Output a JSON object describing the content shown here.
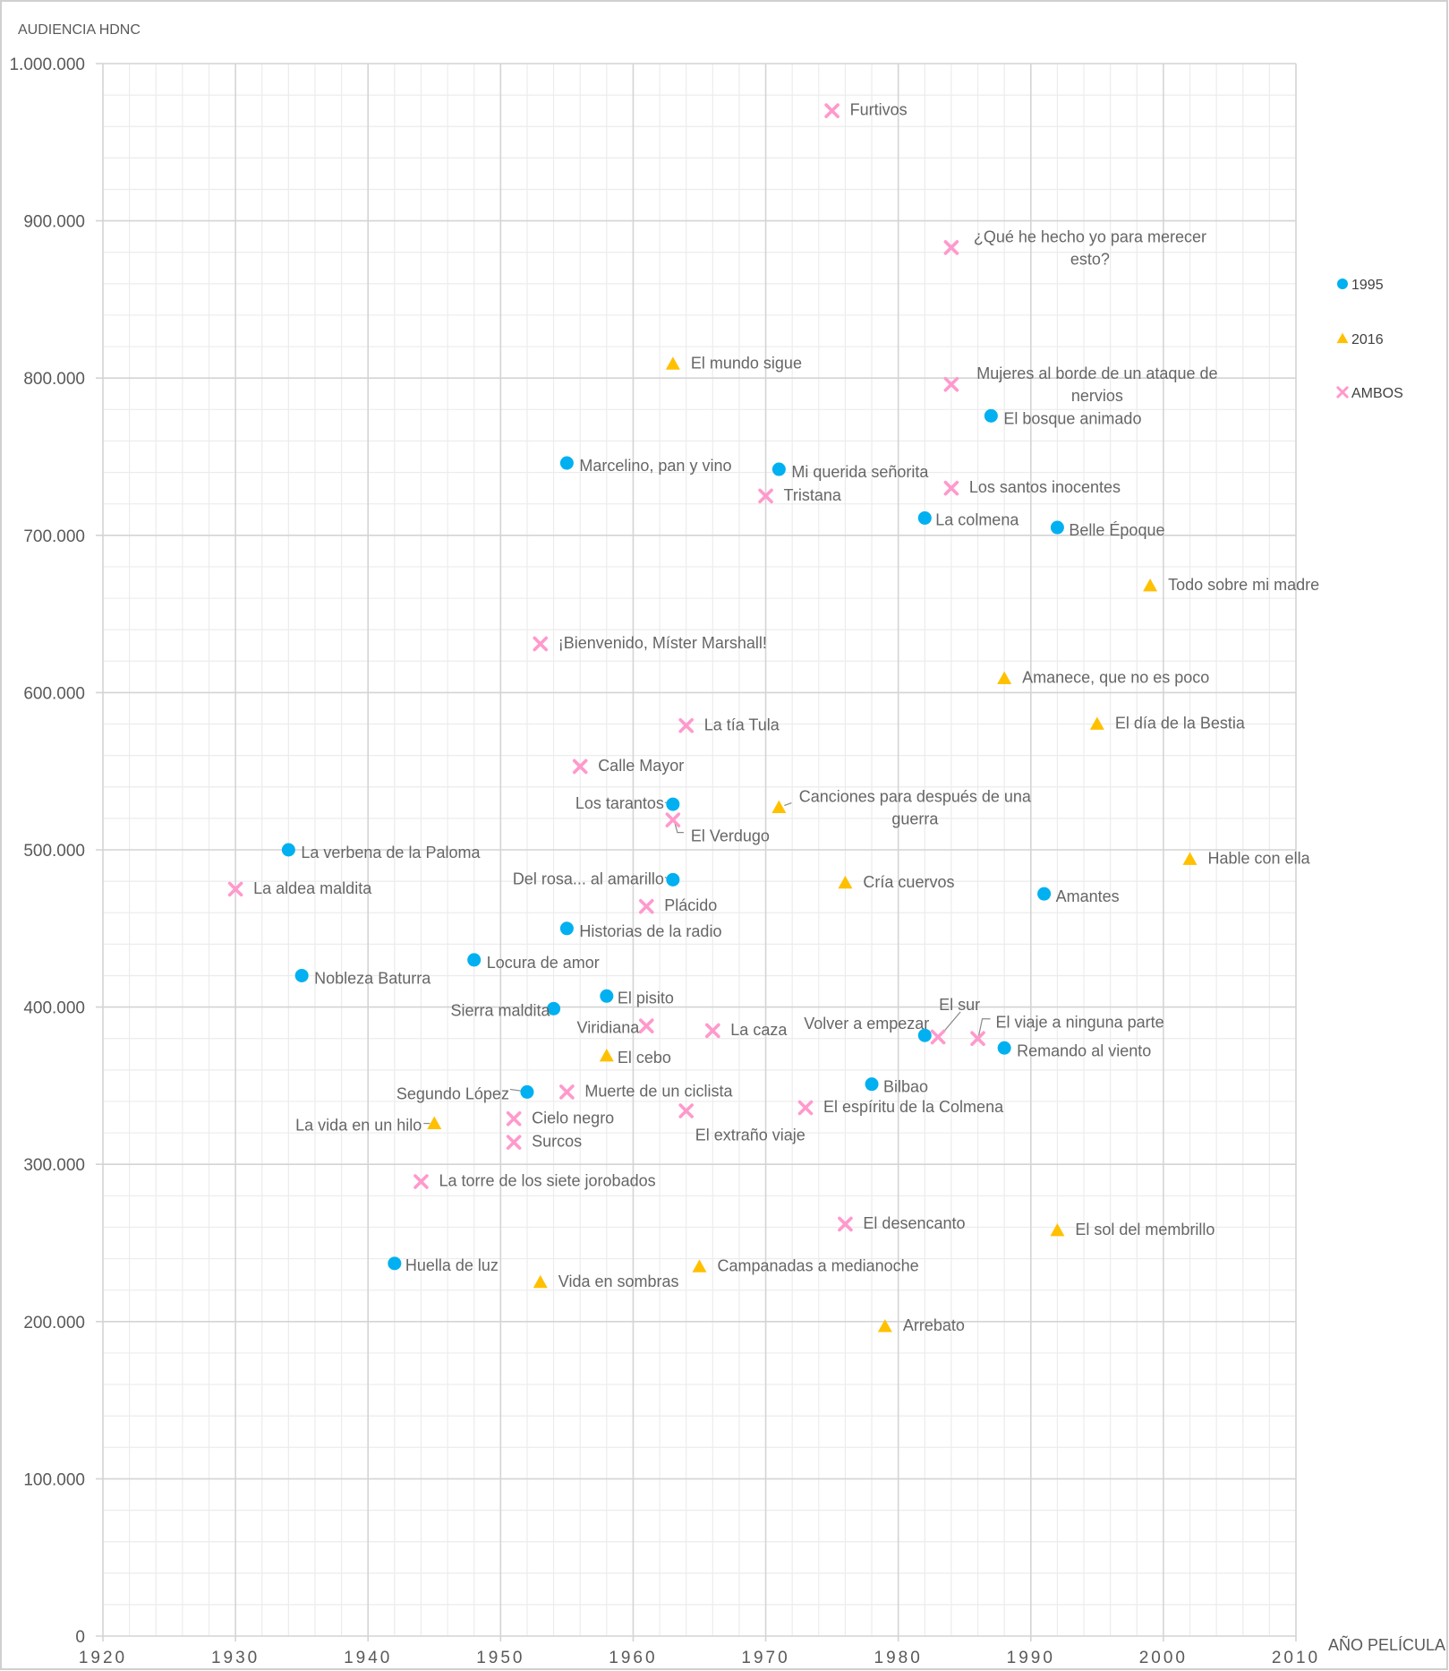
{
  "chart_data": {
    "type": "scatter",
    "title": "",
    "xlabel": "AÑO PELÍCULA",
    "ylabel": "AUDIENCIA HDNC",
    "xlim": [
      1920,
      2010
    ],
    "ylim": [
      0,
      1000000
    ],
    "x_ticks": [
      1920,
      1930,
      1940,
      1950,
      1960,
      1970,
      1980,
      1990,
      2000,
      2010
    ],
    "x_tick_labels": [
      "1920",
      "1930",
      "1940",
      "1950",
      "1960",
      "1970",
      "1980",
      "1990",
      "2000",
      "2010"
    ],
    "y_ticks": [
      0,
      100000,
      200000,
      300000,
      400000,
      500000,
      600000,
      700000,
      800000,
      900000,
      1000000
    ],
    "y_tick_labels": [
      "0",
      "100.000",
      "200.000",
      "300.000",
      "400.000",
      "500.000",
      "600.000",
      "700.000",
      "800.000",
      "900.000",
      "1.000.000"
    ],
    "grid": true,
    "legend_position": "right",
    "series": [
      {
        "name": "1995",
        "marker": "circle",
        "color": "#00B0F0"
      },
      {
        "name": "2016",
        "marker": "triangle",
        "color": "#FFC000"
      },
      {
        "name": "AMBOS",
        "marker": "x",
        "color": "#FF99CC"
      }
    ],
    "points": [
      {
        "label": "Furtivos",
        "series": "AMBOS",
        "x": 1975,
        "y": 970000
      },
      {
        "label": "¿Qué he hecho yo para merecer esto?",
        "series": "AMBOS",
        "x": 1984,
        "y": 883000
      },
      {
        "label": "El mundo sigue",
        "series": "2016",
        "x": 1963,
        "y": 809000
      },
      {
        "label": "Mujeres al borde de un ataque de nervios",
        "series": "AMBOS",
        "x": 1984,
        "y": 796000
      },
      {
        "label": "El bosque animado",
        "series": "1995",
        "x": 1987,
        "y": 776000
      },
      {
        "label": "Marcelino, pan y vino",
        "series": "1995",
        "x": 1955,
        "y": 746000
      },
      {
        "label": "Mi querida señorita",
        "series": "1995",
        "x": 1971,
        "y": 742000
      },
      {
        "label": "Tristana",
        "series": "AMBOS",
        "x": 1970,
        "y": 725000
      },
      {
        "label": "Los santos inocentes",
        "series": "AMBOS",
        "x": 1984,
        "y": 730000
      },
      {
        "label": "La colmena",
        "series": "1995",
        "x": 1982,
        "y": 711000
      },
      {
        "label": "Belle Époque",
        "series": "1995",
        "x": 1992,
        "y": 705000
      },
      {
        "label": "Todo sobre mi madre",
        "series": "2016",
        "x": 1999,
        "y": 668000
      },
      {
        "label": "¡Bienvenido, Míster Marshall!",
        "series": "AMBOS",
        "x": 1953,
        "y": 631000
      },
      {
        "label": "Amanece, que no es poco",
        "series": "2016",
        "x": 1988,
        "y": 609000
      },
      {
        "label": "La tía Tula",
        "series": "AMBOS",
        "x": 1964,
        "y": 579000
      },
      {
        "label": "El día de la Bestia",
        "series": "2016",
        "x": 1995,
        "y": 580000
      },
      {
        "label": "Calle Mayor",
        "series": "AMBOS",
        "x": 1956,
        "y": 553000
      },
      {
        "label": "Los tarantos",
        "series": "1995",
        "x": 1963,
        "y": 529000
      },
      {
        "label": "Canciones para después de una guerra",
        "series": "2016",
        "x": 1971,
        "y": 527000
      },
      {
        "label": "El Verdugo",
        "series": "AMBOS",
        "x": 1963,
        "y": 519000
      },
      {
        "label": "La verbena de la Paloma",
        "series": "1995",
        "x": 1934,
        "y": 500000
      },
      {
        "label": "Hable con ella",
        "series": "2016",
        "x": 2002,
        "y": 494000
      },
      {
        "label": "La aldea maldita",
        "series": "AMBOS",
        "x": 1930,
        "y": 475000
      },
      {
        "label": "Del rosa... al amarillo",
        "series": "1995",
        "x": 1963,
        "y": 481000
      },
      {
        "label": "Cría cuervos",
        "series": "2016",
        "x": 1976,
        "y": 479000
      },
      {
        "label": "Amantes",
        "series": "1995",
        "x": 1991,
        "y": 472000
      },
      {
        "label": "Plácido",
        "series": "AMBOS",
        "x": 1961,
        "y": 464000
      },
      {
        "label": "Historias de la radio",
        "series": "1995",
        "x": 1955,
        "y": 450000
      },
      {
        "label": "Locura de amor",
        "series": "1995",
        "x": 1948,
        "y": 430000
      },
      {
        "label": "Nobleza Baturra",
        "series": "1995",
        "x": 1935,
        "y": 420000
      },
      {
        "label": "El pisito",
        "series": "1995",
        "x": 1958,
        "y": 407000
      },
      {
        "label": "Sierra maldita",
        "series": "1995",
        "x": 1954,
        "y": 399000
      },
      {
        "label": "Viridiana",
        "series": "AMBOS",
        "x": 1961,
        "y": 388000
      },
      {
        "label": "La caza",
        "series": "AMBOS",
        "x": 1966,
        "y": 385000
      },
      {
        "label": "El cebo",
        "series": "2016",
        "x": 1958,
        "y": 369000
      },
      {
        "label": "Volver a empezar",
        "series": "1995",
        "x": 1982,
        "y": 382000
      },
      {
        "label": "El sur",
        "series": "AMBOS",
        "x": 1983,
        "y": 381000
      },
      {
        "label": "El viaje a ninguna parte",
        "series": "AMBOS",
        "x": 1986,
        "y": 380000
      },
      {
        "label": "Remando al viento",
        "series": "1995",
        "x": 1988,
        "y": 374000
      },
      {
        "label": "Bilbao",
        "series": "1995",
        "x": 1978,
        "y": 351000
      },
      {
        "label": "Segundo López",
        "series": "1995",
        "x": 1952,
        "y": 346000
      },
      {
        "label": "Muerte de un ciclista",
        "series": "AMBOS",
        "x": 1955,
        "y": 346000
      },
      {
        "label": "El espíritu de la Colmena",
        "series": "AMBOS",
        "x": 1973,
        "y": 336000
      },
      {
        "label": "El extraño viaje",
        "series": "AMBOS",
        "x": 1964,
        "y": 334000
      },
      {
        "label": "La vida en un hilo",
        "series": "2016",
        "x": 1945,
        "y": 326000
      },
      {
        "label": "Cielo negro",
        "series": "AMBOS",
        "x": 1951,
        "y": 329000
      },
      {
        "label": "Surcos",
        "series": "AMBOS",
        "x": 1951,
        "y": 314000
      },
      {
        "label": "La torre de los siete jorobados",
        "series": "AMBOS",
        "x": 1944,
        "y": 289000
      },
      {
        "label": "El desencanto",
        "series": "AMBOS",
        "x": 1976,
        "y": 262000
      },
      {
        "label": "El sol del membrillo",
        "series": "2016",
        "x": 1992,
        "y": 258000
      },
      {
        "label": "Huella de luz",
        "series": "1995",
        "x": 1942,
        "y": 237000
      },
      {
        "label": "Campanadas a medianoche",
        "series": "2016",
        "x": 1965,
        "y": 235000
      },
      {
        "label": "Vida en sombras",
        "series": "2016",
        "x": 1953,
        "y": 225000
      },
      {
        "label": "Arrebato",
        "series": "2016",
        "x": 1979,
        "y": 197000
      }
    ]
  }
}
